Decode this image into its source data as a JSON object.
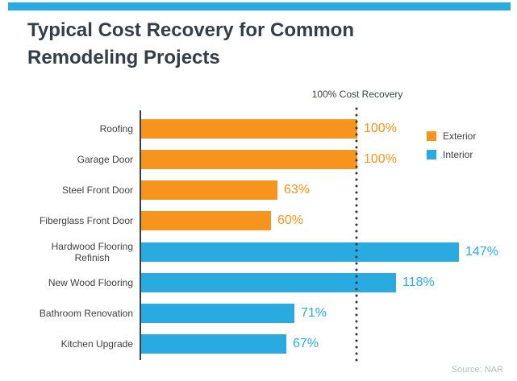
{
  "header": {
    "title": "Typical Cost Recovery for Common Remodeling Projects",
    "accent_bar_color": "#29ABE2"
  },
  "chart_data": {
    "type": "bar",
    "orientation": "horizontal",
    "title": "Typical Cost Recovery for Common Remodeling Projects",
    "categories": [
      "Roofing",
      "Garage Door",
      "Steel Front Door",
      "Fiberglass Front Door",
      "Hardwood Flooring\nRefinish",
      "New Wood Flooring",
      "Bathroom Renovation",
      "Kitchen Upgrade"
    ],
    "values": [
      100,
      100,
      63,
      60,
      147,
      118,
      71,
      67
    ],
    "value_labels": [
      "100%",
      "100%",
      "63%",
      "60%",
      "147%",
      "118%",
      "71%",
      "67%"
    ],
    "groups": [
      "Exterior",
      "Exterior",
      "Exterior",
      "Exterior",
      "Interior",
      "Interior",
      "Interior",
      "Interior"
    ],
    "legend": [
      {
        "label": "Exterior",
        "color": "#F7941D"
      },
      {
        "label": "Interior",
        "color": "#29ABE2"
      }
    ],
    "legend_position": "right",
    "grid": false,
    "xlim": [
      0,
      160
    ],
    "reference_line": {
      "value": 100,
      "label": "100% Cost Recovery",
      "style": "dotted",
      "color": "#333639"
    },
    "source": "Source: NAR"
  }
}
